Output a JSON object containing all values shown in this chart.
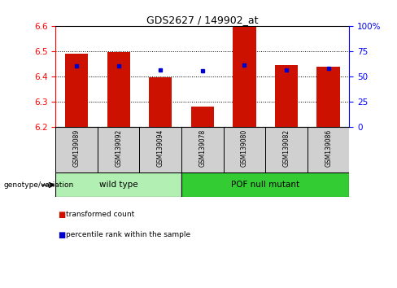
{
  "title": "GDS2627 / 149902_at",
  "samples": [
    "GSM139089",
    "GSM139092",
    "GSM139094",
    "GSM139078",
    "GSM139080",
    "GSM139082",
    "GSM139086"
  ],
  "red_values": [
    6.49,
    6.495,
    6.395,
    6.28,
    6.597,
    6.445,
    6.44
  ],
  "blue_values": [
    6.443,
    6.443,
    6.426,
    6.422,
    6.445,
    6.427,
    6.433
  ],
  "ylim": [
    6.2,
    6.6
  ],
  "yticks_left": [
    6.2,
    6.3,
    6.4,
    6.5,
    6.6
  ],
  "ybase": 6.2,
  "right_tick_positions": [
    6.2,
    6.3,
    6.4,
    6.5,
    6.6
  ],
  "right_tick_labels": [
    "0",
    "25",
    "50",
    "75",
    "100%"
  ],
  "groups": [
    {
      "label": "wild type",
      "indices": [
        0,
        1,
        2
      ],
      "color": "#b2efb2"
    },
    {
      "label": "POF null mutant",
      "indices": [
        3,
        4,
        5,
        6
      ],
      "color": "#33cc33"
    }
  ],
  "sample_box_color": "#d0d0d0",
  "bar_color_red": "#cc1100",
  "bar_color_blue": "#0000cc",
  "bar_width": 0.55,
  "legend_red_label": "transformed count",
  "legend_blue_label": "percentile rank within the sample",
  "genotype_label": "genotype/variation"
}
